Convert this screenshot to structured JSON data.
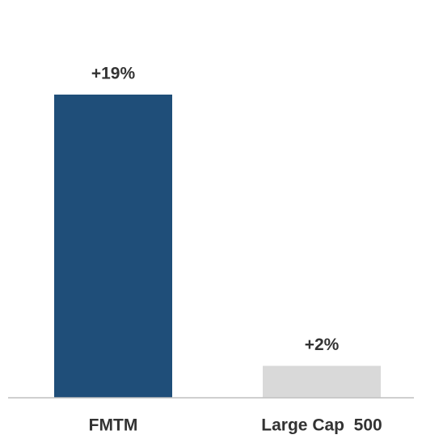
{
  "chart_data": {
    "type": "bar",
    "categories": [
      "FMTM",
      "Large Cap  500"
    ],
    "values": [
      19,
      2
    ],
    "value_labels": [
      "+19%",
      "+2%"
    ],
    "colors": [
      "#1f4e79",
      "#d9d9d9"
    ]
  }
}
